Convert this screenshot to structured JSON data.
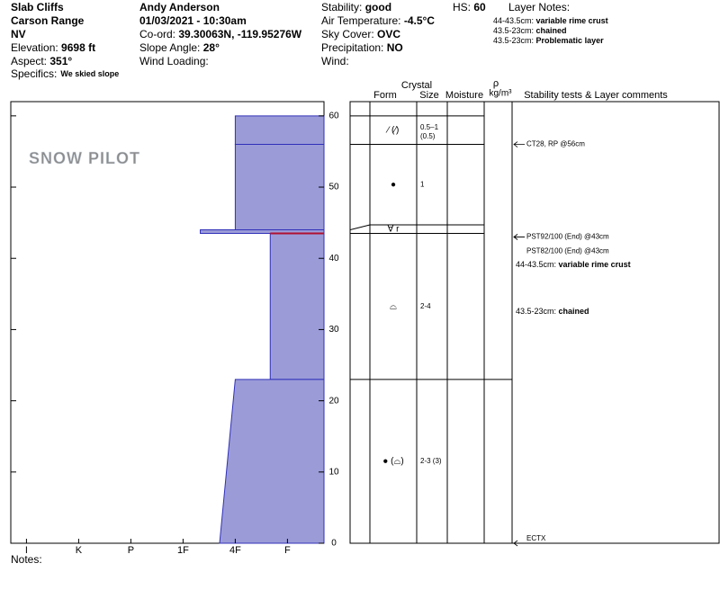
{
  "header": {
    "location": "Slab Cliffs",
    "range": "Carson Range",
    "state": "NV",
    "elevation_label": "Elevation:",
    "elevation": "9698 ft",
    "aspect_label": "Aspect:",
    "aspect": "351°",
    "specifics_label": "Specifics:",
    "specifics": "We skied slope",
    "observer": "Andy Anderson",
    "datetime": "01/03/2021 - 10:30am",
    "coord_label": "Co-ord:",
    "coord": "39.30063N, -119.95276W",
    "slope_label": "Slope Angle:",
    "slope": "28°",
    "wind_loading_label": "Wind Loading:",
    "stability_label": "Stability:",
    "stability": "good",
    "air_temp_label": "Air Temperature:",
    "air_temp": "-4.5°C",
    "sky_label": "Sky Cover:",
    "sky": "OVC",
    "precip_label": "Precipitation:",
    "precip": "NO",
    "wind_label": "Wind:",
    "hs_label": "HS:",
    "hs": "60",
    "layer_notes_title": "Layer Notes:",
    "layer_notes": [
      {
        "range": "44-43.5cm:",
        "text": "variable rime crust"
      },
      {
        "range": "43.5-23cm:",
        "text": "chained"
      },
      {
        "range": "43.5-23cm:",
        "text": "Problematic layer"
      }
    ]
  },
  "logo": "SNOW PILOT",
  "profile": {
    "ylim": [
      0,
      62
    ],
    "yticks": [
      0,
      10,
      20,
      30,
      40,
      50,
      60
    ],
    "xlim": [
      -0.3,
      5.7
    ],
    "hardness_ticks": [
      {
        "value": 0,
        "label": "I"
      },
      {
        "value": 1,
        "label": "K"
      },
      {
        "value": 2,
        "label": "P"
      },
      {
        "value": 3,
        "label": "1F"
      },
      {
        "value": 4,
        "label": "4F"
      },
      {
        "value": 5,
        "label": "F"
      }
    ],
    "layers": [
      {
        "top": 60,
        "bottom": 56,
        "hardness_top": 4,
        "hardness_bottom": 4
      },
      {
        "top": 56,
        "bottom": 44,
        "hardness_top": 4,
        "hardness_bottom": 4
      },
      {
        "top": 44,
        "bottom": 43.5,
        "hardness_top": 3.33,
        "hardness_bottom": 3.33
      },
      {
        "top": 43.5,
        "bottom": 23,
        "hardness_top": 4.67,
        "hardness_bottom": 4.67
      },
      {
        "top": 23,
        "bottom": 0,
        "hardness_top": 4,
        "hardness_bottom": 3.7
      }
    ],
    "critical_depth": 43.5
  },
  "columns": {
    "crystal": "Crystal",
    "form": "Form",
    "size": "Size",
    "moisture": "Moisture",
    "rho": "ρ",
    "density_unit": "kg/m³",
    "comments": "Stability tests & Layer comments"
  },
  "strat": [
    {
      "form": "⁄ (⁄)",
      "size": "0.5–1",
      "size2": "(0.5)"
    },
    {
      "form": "●",
      "size": "1"
    },
    {
      "form": "∀ r"
    },
    {
      "form": "⌓",
      "size": "2-4"
    },
    {
      "form": "● (⌓)",
      "size": "2-3 (3)"
    }
  ],
  "tests": [
    {
      "text": "CT28, RP @56cm",
      "depth": 56
    },
    {
      "text": "PST92/100 (End) @43cm",
      "depth": 43
    },
    {
      "text": "PST82/100 (End) @43cm",
      "depth": 43
    },
    {
      "text": "ECTX",
      "depth": 0
    }
  ],
  "comments": [
    {
      "range": "44-43.5cm:",
      "text": "variable rime crust"
    },
    {
      "range": "43.5-23cm:",
      "text": "chained"
    }
  ],
  "notes_label": "Notes:"
}
